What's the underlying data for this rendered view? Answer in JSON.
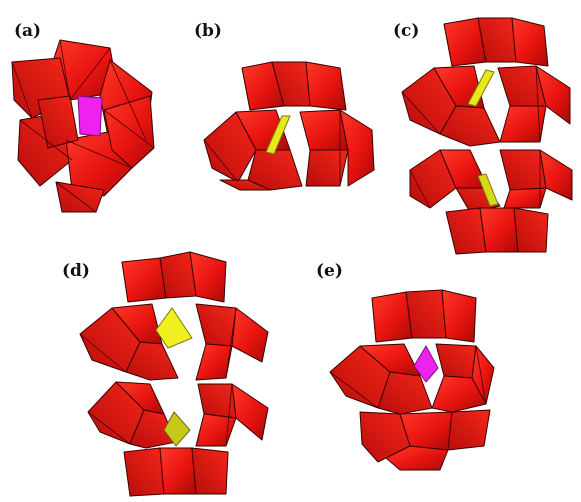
{
  "panels": [
    {
      "id": "a",
      "label": "(a)",
      "center_color": "magenta"
    },
    {
      "id": "b",
      "label": "(b)",
      "center_color": "yellow"
    },
    {
      "id": "c",
      "label": "(c)",
      "center_color": "yellow"
    },
    {
      "id": "d",
      "label": "(d)",
      "center_color": "yellow"
    },
    {
      "id": "e",
      "label": "(e)",
      "center_color": "magenta"
    }
  ],
  "colors": {
    "polyhedra": "#e8140f",
    "polyhedra_dark": "#b30c0a",
    "polyhedra_light": "#ff3a2a",
    "heteroatom_magenta": "#ee22ee",
    "heteroatom_yellow": "#e8e81a",
    "background": "#ffffff"
  }
}
